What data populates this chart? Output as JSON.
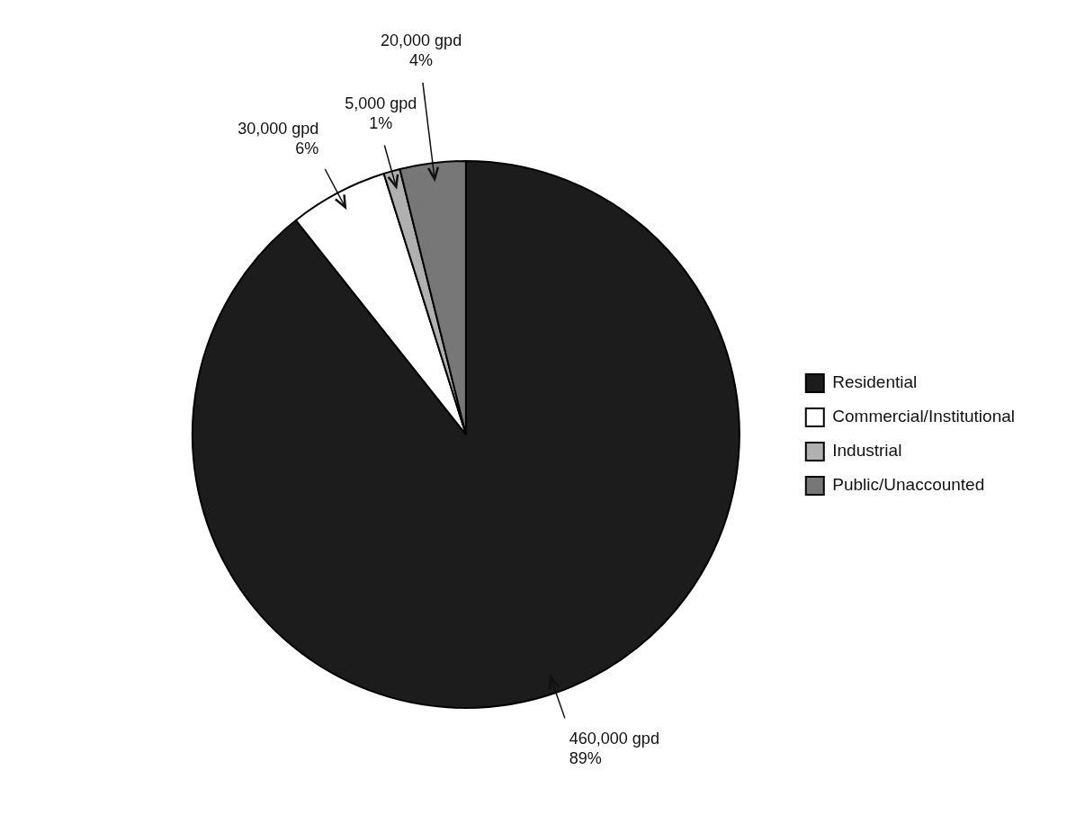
{
  "chart_data": {
    "type": "pie",
    "categories": [
      "Residential",
      "Commercial/Institutional",
      "Industrial",
      "Public/Unaccounted"
    ],
    "values": [
      460000,
      30000,
      5000,
      20000
    ],
    "colors": [
      "#1c1c1c",
      "#ffffff",
      "#b0b0b0",
      "#777777"
    ],
    "value_labels": [
      "460,000 gpd\n89%",
      "30,000 gpd\n6%",
      "5,000 gpd\n1%",
      "20,000 gpd\n4%"
    ],
    "legend": "right"
  }
}
